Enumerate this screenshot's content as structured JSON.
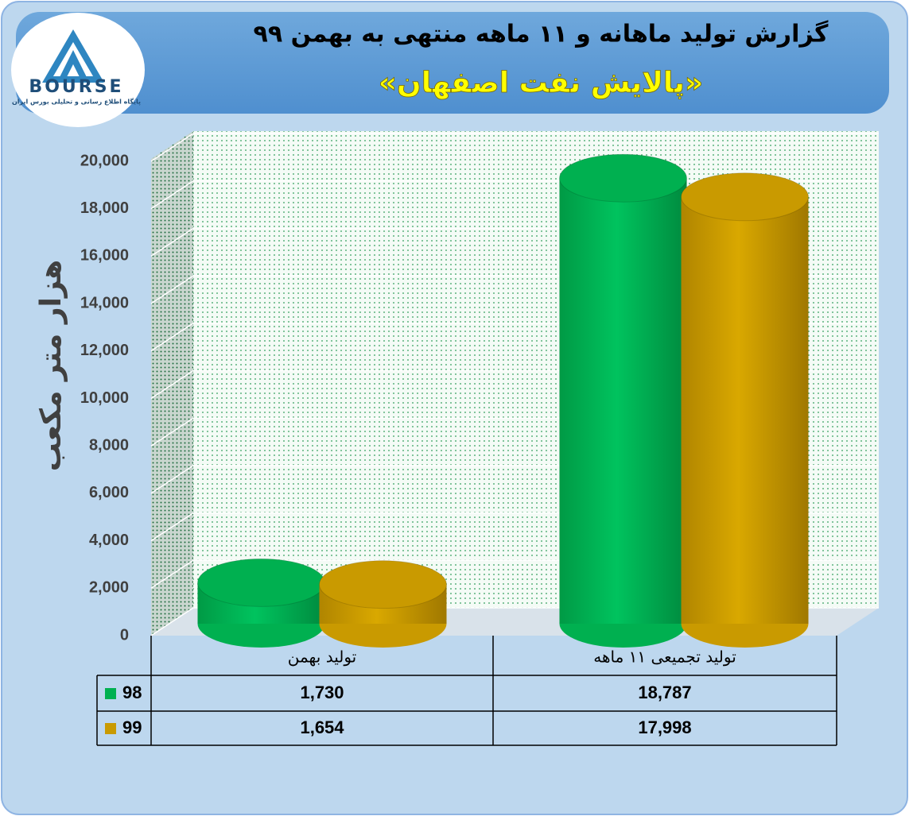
{
  "logo": {
    "text": "BOURSE",
    "caption": "پایگاه اطلاع رسانی و تحلیلی بورس ایران"
  },
  "chart_data": {
    "type": "bar",
    "title": "گزارش تولید ماهانه و ۱۱ ماهه منتهی به بهمن ۹۹",
    "subtitle": "«پالایش نفت اصفهان»",
    "y_label": "هزار متر مکعب",
    "categories": [
      "تولید بهمن",
      "تولید تجمیعی ۱۱ ماهه"
    ],
    "series": [
      {
        "name": "98",
        "color": "#00b050",
        "values": [
          1730,
          18787
        ],
        "value_labels": [
          "1,730",
          "18,787"
        ]
      },
      {
        "name": "99",
        "color": "#c99a00",
        "values": [
          1654,
          17998
        ],
        "value_labels": [
          "1,654",
          "17,998"
        ]
      }
    ],
    "ylim": [
      0,
      20000
    ],
    "yticks": [
      0,
      {
        "value": 2000,
        "label": "2,000"
      },
      {
        "value": 4000,
        "label": "4,000"
      },
      {
        "value": 6000,
        "label": "6,000"
      },
      {
        "value": 8000,
        "label": "8,000"
      },
      {
        "value": 10000,
        "label": "10,000"
      },
      {
        "value": 12000,
        "label": "12,000"
      },
      {
        "value": 14000,
        "label": "14,000"
      },
      {
        "value": 16000,
        "label": "16,000"
      },
      {
        "value": 18000,
        "label": "18,000"
      },
      {
        "value": 20000,
        "label": "20,000"
      }
    ],
    "grid": true
  }
}
